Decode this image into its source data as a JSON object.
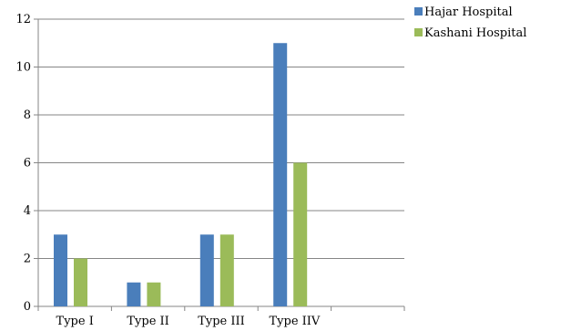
{
  "chart_data": {
    "type": "bar",
    "categories": [
      "Type I",
      "Type II",
      "Type III",
      "Type IIV",
      ""
    ],
    "series": [
      {
        "name": "Hajar Hospital",
        "color": "#4a7ebb",
        "values": [
          3,
          1,
          3,
          11,
          null
        ]
      },
      {
        "name": "Kashani Hospital",
        "color": "#9bbb59",
        "values": [
          2,
          1,
          3,
          6,
          null
        ]
      }
    ],
    "ylim": [
      0,
      12
    ],
    "yticks": [
      0,
      2,
      4,
      6,
      8,
      10,
      12
    ],
    "grid": true,
    "legend": "top-right",
    "title": "",
    "xlabel": "",
    "ylabel": ""
  }
}
